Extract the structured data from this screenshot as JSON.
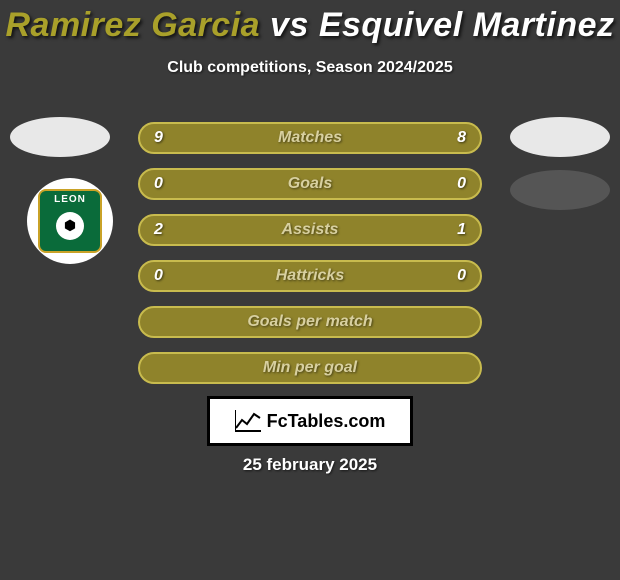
{
  "title": {
    "player1": "Ramirez Garcia",
    "vs": "vs",
    "player2": "Esquivel Martinez",
    "player1_color": "#a9a02a",
    "player2_color": "#ffffff"
  },
  "subtitle": "Club competitions, Season 2024/2025",
  "club": {
    "name": "LEON",
    "bg_color": "#0a6b3a",
    "accent": "#c9a227"
  },
  "stats": {
    "row_bg_color": "#8f832b",
    "row_border_color": "#c8bb4e",
    "label_color": "#d8d0a0",
    "value_color": "#ffffff",
    "rows": [
      {
        "label": "Matches",
        "left": "9",
        "right": "8"
      },
      {
        "label": "Goals",
        "left": "0",
        "right": "0"
      },
      {
        "label": "Assists",
        "left": "2",
        "right": "1"
      },
      {
        "label": "Hattricks",
        "left": "0",
        "right": "0"
      },
      {
        "label": "Goals per match",
        "left": "",
        "right": ""
      },
      {
        "label": "Min per goal",
        "left": "",
        "right": ""
      }
    ]
  },
  "brand": "FcTables.com",
  "date": "25 february 2025",
  "colors": {
    "page_bg": "#3a3a3a",
    "logo_light": "#e8e8e8",
    "logo_dark": "#555555"
  }
}
